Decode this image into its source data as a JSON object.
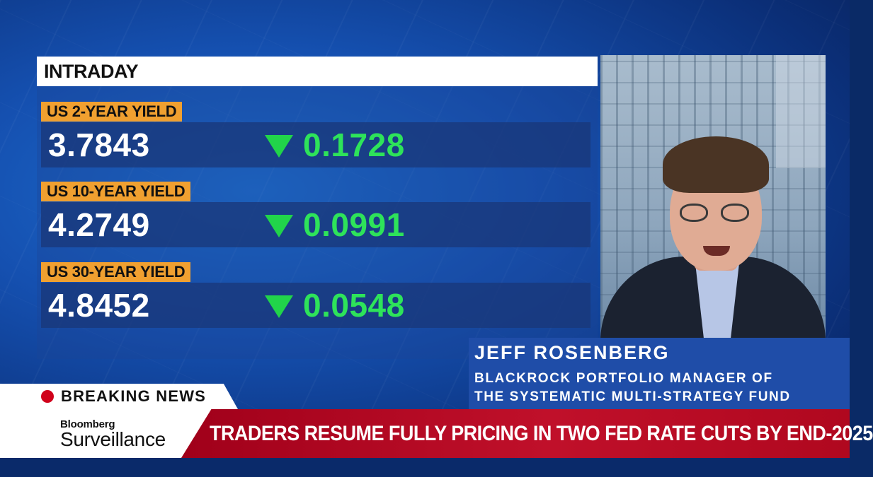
{
  "panel": {
    "title": "INTRADAY",
    "rows": [
      {
        "label": "US 2-YEAR YIELD",
        "value": "3.7843",
        "change": "0.1728",
        "direction": "down"
      },
      {
        "label": "US 10-YEAR YIELD",
        "value": "4.2749",
        "change": "0.0991",
        "direction": "down"
      },
      {
        "label": "US 30-YEAR YIELD",
        "value": "4.8452",
        "change": "0.0548",
        "direction": "down"
      }
    ]
  },
  "guest": {
    "name": "JEFF ROSENBERG",
    "title_line1": "BLACKROCK PORTFOLIO MANAGER OF",
    "title_line2": "THE SYSTEMATIC MULTI-STRATEGY FUND"
  },
  "breaking": {
    "label": "BREAKING NEWS"
  },
  "show": {
    "brand": "Bloomberg",
    "name": "Surveillance"
  },
  "headline": "TRADERS RESUME FULLY PRICING IN TWO FED RATE CUTS BY END-2025",
  "colors": {
    "label_orange": "#f0a030",
    "down_green": "#21d44a",
    "headline_red": "#c0102a",
    "plate_blue": "#1f4da8"
  },
  "icons": {
    "down": "down-triangle-icon",
    "live": "red-dot-icon"
  }
}
